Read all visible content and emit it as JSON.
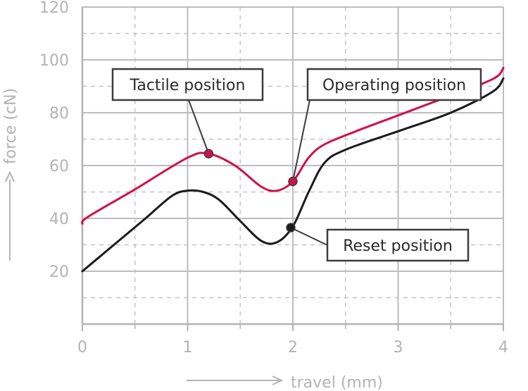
{
  "chart_data": {
    "type": "line",
    "xlabel": "travel (mm)",
    "ylabel": "force (cN)",
    "xlim": [
      0,
      4
    ],
    "ylim": [
      0,
      120
    ],
    "x_ticks": [
      0,
      1,
      2,
      3,
      4
    ],
    "y_ticks": [
      20,
      40,
      60,
      80,
      100,
      120
    ],
    "grid": true,
    "series": [
      {
        "color": "#d0104c",
        "points": [
          [
            0,
            38
          ],
          [
            0.05,
            40.5
          ],
          [
            0.5,
            51
          ],
          [
            1.0,
            63
          ],
          [
            1.2,
            64.5
          ],
          [
            1.45,
            60
          ],
          [
            1.7,
            52
          ],
          [
            1.85,
            50.5
          ],
          [
            2.0,
            54
          ],
          [
            2.15,
            63
          ],
          [
            2.3,
            68
          ],
          [
            2.6,
            73
          ],
          [
            3.0,
            79
          ],
          [
            3.4,
            85
          ],
          [
            3.8,
            91
          ],
          [
            3.95,
            94
          ],
          [
            4.0,
            97
          ]
        ]
      },
      {
        "color": "#1a1a1a",
        "points": [
          [
            0,
            20
          ],
          [
            0.3,
            30
          ],
          [
            0.6,
            40
          ],
          [
            0.85,
            48.5
          ],
          [
            1.0,
            50.5
          ],
          [
            1.15,
            50
          ],
          [
            1.3,
            47
          ],
          [
            1.5,
            39
          ],
          [
            1.7,
            31.5
          ],
          [
            1.85,
            31
          ],
          [
            2.0,
            37
          ],
          [
            2.15,
            50
          ],
          [
            2.3,
            61
          ],
          [
            2.5,
            66
          ],
          [
            3.0,
            73
          ],
          [
            3.5,
            80
          ],
          [
            3.9,
            88
          ],
          [
            4.0,
            93
          ]
        ]
      }
    ],
    "annotations": [
      {
        "label": "Tactile position",
        "x": 1.2,
        "y": 64.5,
        "color": "#d0104c"
      },
      {
        "label": "Operating position",
        "x": 2.0,
        "y": 54,
        "color": "#d0104c"
      },
      {
        "label": "Reset position",
        "x": 1.98,
        "y": 36.5,
        "color": "#1a1a1a"
      }
    ]
  }
}
